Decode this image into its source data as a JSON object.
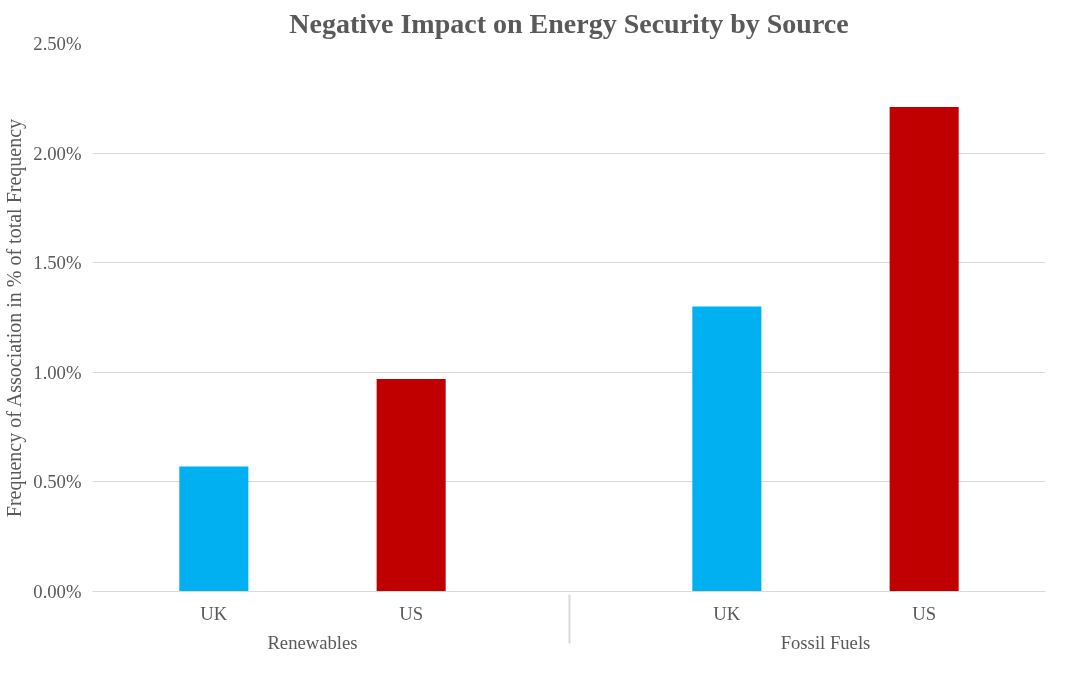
{
  "chart_data": {
    "type": "bar",
    "title": "Negative Impact on Energy Security by Source",
    "ylabel": "Frequency of Association in % of total Frequency",
    "categories": [
      "UK",
      "US",
      "UK",
      "US"
    ],
    "annotations": [
      "Renewables",
      "Fossil Fuels"
    ],
    "values": [
      0.57,
      0.97,
      1.3,
      2.21
    ],
    "colors": [
      "#00b0f0",
      "#c00000",
      "#00b0f0",
      "#c00000"
    ],
    "ylim": [
      0,
      2.5
    ],
    "yticks": [
      {
        "value": 0,
        "label": "0.00%"
      },
      {
        "value": 0.5,
        "label": "0.50%"
      },
      {
        "value": 1.0,
        "label": "1.00%"
      },
      {
        "value": 1.5,
        "label": "1.50%"
      },
      {
        "value": 2.0,
        "label": "2.00%"
      },
      {
        "value": 2.5,
        "label": "2.50%"
      }
    ],
    "grid": "y"
  }
}
